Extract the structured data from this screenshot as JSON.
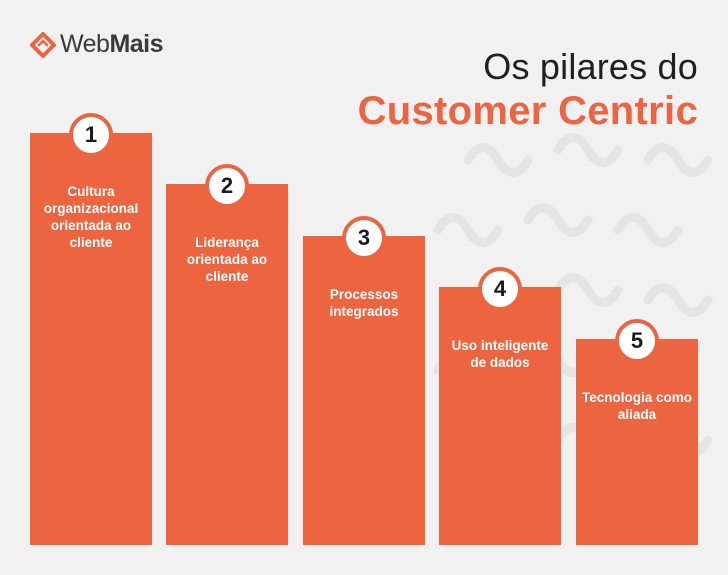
{
  "logo": {
    "icon": "webmais-logo-icon",
    "text_web": "Web",
    "text_mais": "Mais"
  },
  "title": {
    "line1": "Os pilares do",
    "line2": "Customer Centric"
  },
  "pillars": [
    {
      "number": "1",
      "label": "Cultura organizacional orientada ao cliente"
    },
    {
      "number": "2",
      "label": "Liderança orientada ao cliente"
    },
    {
      "number": "3",
      "label": "Processos integrados"
    },
    {
      "number": "4",
      "label": "Uso inteligente de dados"
    },
    {
      "number": "5",
      "label": "Tecnologia como aliada"
    }
  ],
  "colors": {
    "accent": "#ec6440",
    "background": "#f1f1f1",
    "title_dark": "#1f1f1f"
  }
}
